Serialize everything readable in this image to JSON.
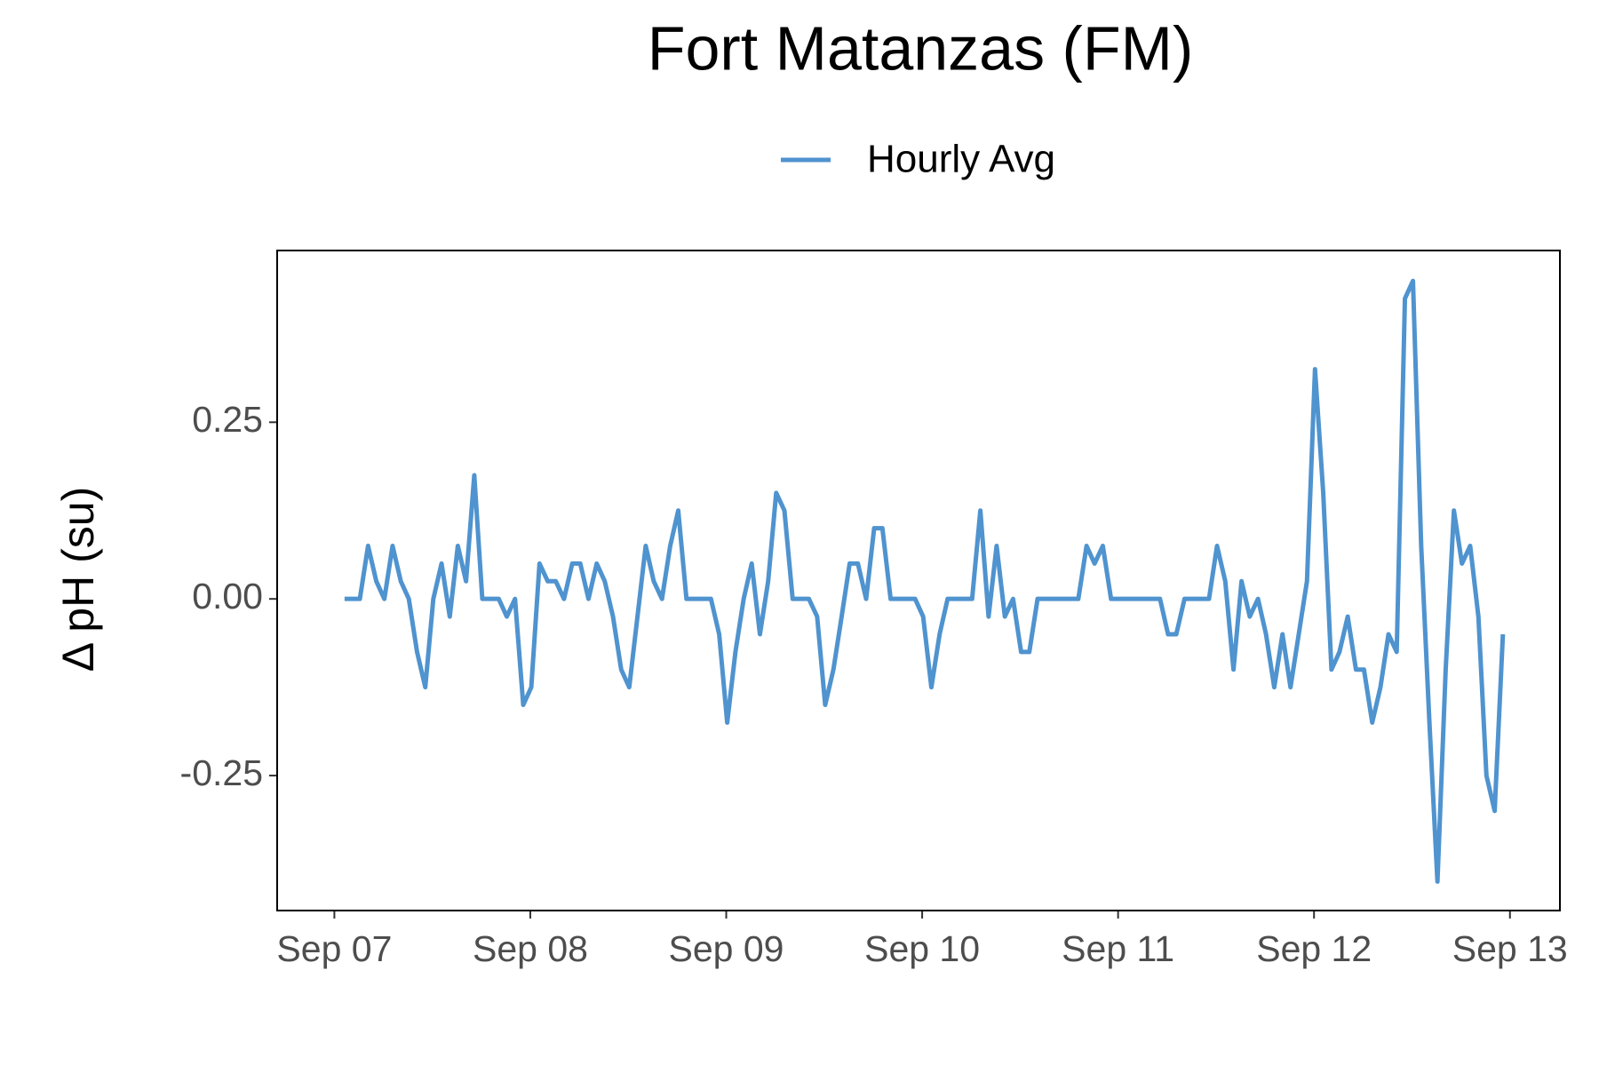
{
  "chart_data": {
    "type": "line",
    "title": "Fort Matanzas (FM)",
    "y_label": "Δ pH (su)",
    "xlim": [
      6.708,
      13.255
    ],
    "ylim": [
      -0.441,
      0.493
    ],
    "xticks": [
      {
        "value": 7,
        "label": "Sep 07"
      },
      {
        "value": 8,
        "label": "Sep 08"
      },
      {
        "value": 9,
        "label": "Sep 09"
      },
      {
        "value": 10,
        "label": "Sep 10"
      },
      {
        "value": 11,
        "label": "Sep 11"
      },
      {
        "value": 12,
        "label": "Sep 12"
      },
      {
        "value": 13,
        "label": "Sep 13"
      }
    ],
    "yticks": [
      -0.25,
      {
        "value": 0,
        "label": "0.00"
      },
      0.25
    ],
    "legend": "top",
    "x": [
      7.052,
      7.13,
      7.172,
      7.214,
      7.255,
      7.297,
      7.339,
      7.38,
      7.422,
      7.464,
      7.505,
      7.547,
      7.589,
      7.63,
      7.672,
      7.714,
      7.755,
      7.839,
      7.88,
      7.922,
      7.964,
      8.005,
      8.047,
      8.089,
      8.13,
      8.172,
      8.214,
      8.255,
      8.297,
      8.339,
      8.38,
      8.422,
      8.464,
      8.505,
      8.547,
      8.589,
      8.63,
      8.672,
      8.714,
      8.755,
      8.797,
      8.922,
      8.964,
      9.005,
      9.047,
      9.089,
      9.13,
      9.172,
      9.214,
      9.255,
      9.297,
      9.339,
      9.422,
      9.464,
      9.505,
      9.547,
      9.589,
      9.63,
      9.672,
      9.714,
      9.755,
      9.797,
      9.839,
      9.964,
      10.005,
      10.047,
      10.089,
      10.13,
      10.255,
      10.297,
      10.339,
      10.38,
      10.422,
      10.464,
      10.505,
      10.547,
      10.589,
      10.797,
      10.839,
      10.88,
      10.922,
      10.964,
      11.214,
      11.255,
      11.297,
      11.339,
      11.464,
      11.505,
      11.547,
      11.589,
      11.63,
      11.672,
      11.714,
      11.755,
      11.797,
      11.839,
      11.88,
      11.922,
      11.964,
      12.005,
      12.047,
      12.089,
      12.13,
      12.172,
      12.214,
      12.255,
      12.297,
      12.339,
      12.38,
      12.422,
      12.464,
      12.505,
      12.547,
      12.589,
      12.63,
      12.672,
      12.714,
      12.755,
      12.797,
      12.839,
      12.88,
      12.922,
      12.964
    ],
    "series": [
      {
        "name": "Hourly Avg",
        "color": "#4f93cf",
        "values": [
          0,
          0,
          0.075,
          0.025,
          0,
          0.075,
          0.025,
          0,
          -0.075,
          -0.125,
          0,
          0.05,
          -0.025,
          0.075,
          0.025,
          0.175,
          0,
          0,
          -0.025,
          0,
          -0.15,
          -0.125,
          0.05,
          0.025,
          0.025,
          0,
          0.05,
          0.05,
          0,
          0.05,
          0.025,
          -0.025,
          -0.1,
          -0.125,
          -0.025,
          0.075,
          0.025,
          0,
          0.075,
          0.125,
          0,
          0,
          -0.05,
          -0.175,
          -0.075,
          0,
          0.05,
          -0.05,
          0.025,
          0.15,
          0.125,
          0,
          0,
          -0.025,
          -0.15,
          -0.1,
          -0.025,
          0.05,
          0.05,
          0,
          0.1,
          0.1,
          0,
          0,
          -0.025,
          -0.125,
          -0.05,
          0,
          0,
          0.125,
          -0.025,
          0.075,
          -0.025,
          0,
          -0.075,
          -0.075,
          0,
          0,
          0.075,
          0.05,
          0.075,
          0,
          0,
          -0.05,
          -0.05,
          0,
          0,
          0.075,
          0.025,
          -0.1,
          0.025,
          -0.025,
          0,
          -0.05,
          -0.125,
          -0.05,
          -0.125,
          -0.05,
          0.025,
          0.325,
          0.15,
          -0.1,
          -0.075,
          -0.025,
          -0.1,
          -0.1,
          -0.175,
          -0.125,
          -0.05,
          -0.075,
          0.425,
          0.45,
          0.075,
          -0.175,
          -0.4,
          -0.1,
          0.125,
          0.05,
          0.075,
          -0.025,
          -0.25,
          -0.3,
          -0.05
        ]
      }
    ]
  }
}
